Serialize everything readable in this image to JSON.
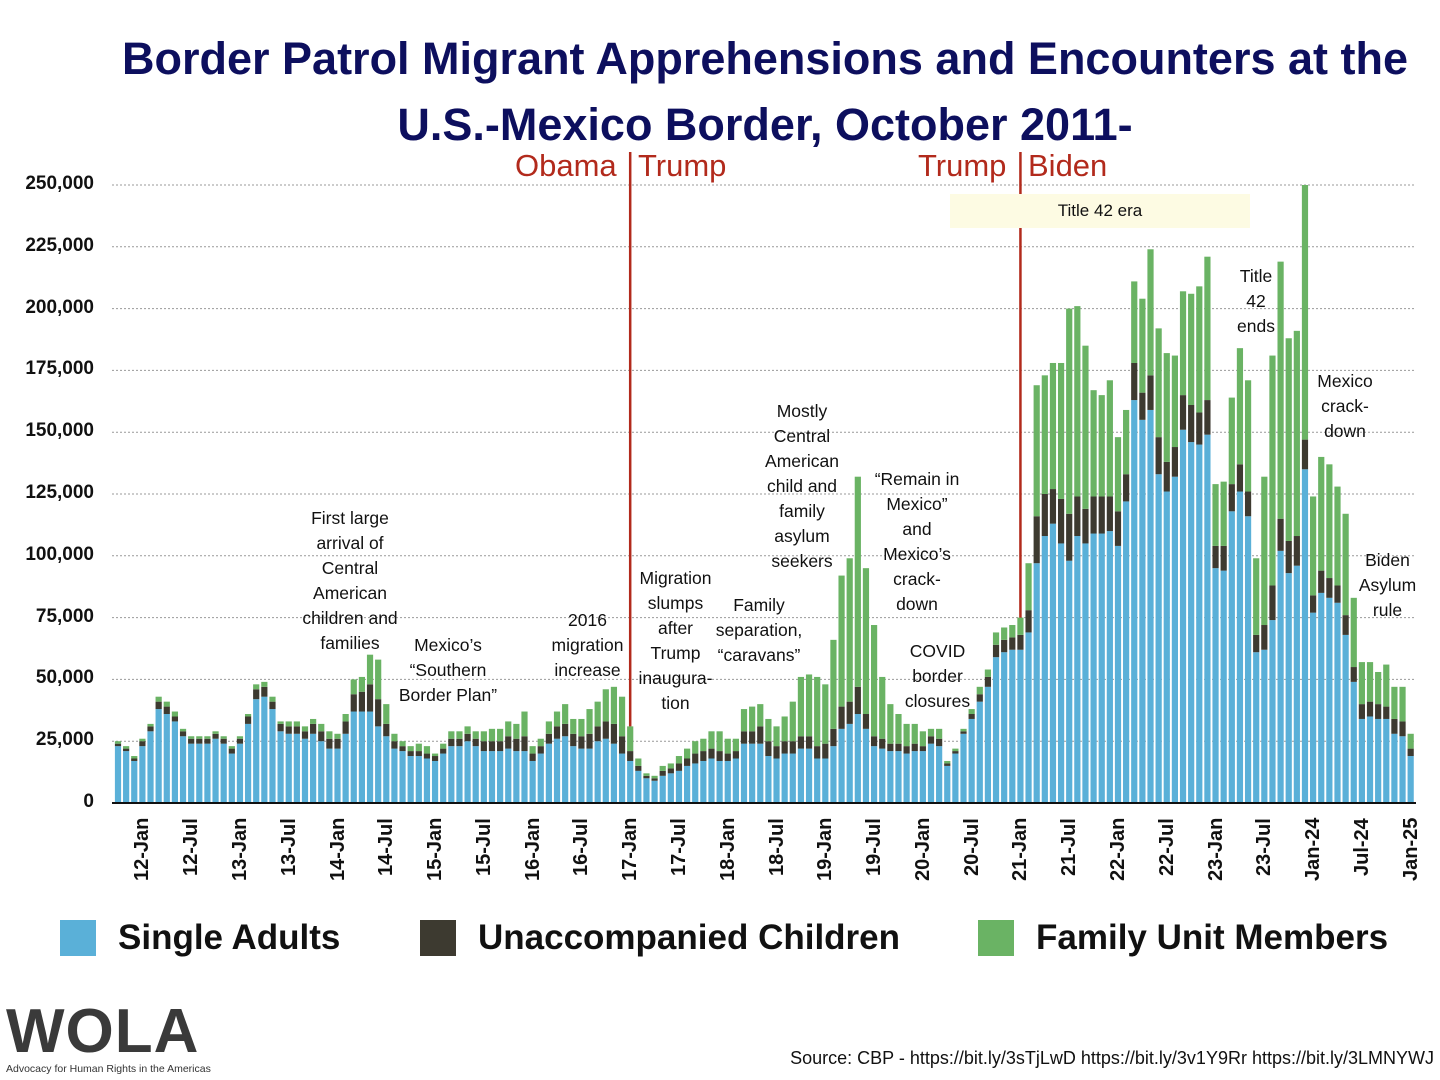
{
  "chart_data": {
    "type": "bar",
    "stacked": true,
    "title": "Border Patrol Migrant Apprehensions and Encounters at the U.S.-Mexico Border, October 2011-",
    "xlabel": "",
    "ylabel": "",
    "start_month": "2011-10",
    "ylim": [
      0,
      250000
    ],
    "yticks": [
      "0",
      "25,000",
      "50,000",
      "75,000",
      "100,000",
      "125,000",
      "150,000",
      "175,000",
      "200,000",
      "225,000",
      "250,000"
    ],
    "xticks": [
      "12-Jan",
      "12-Jul",
      "13-Jan",
      "13-Jul",
      "14-Jan",
      "14-Jul",
      "15-Jan",
      "15-Jul",
      "16-Jan",
      "16-Jul",
      "17-Jan",
      "17-Jul",
      "18-Jan",
      "18-Jul",
      "19-Jan",
      "19-Jul",
      "20-Jan",
      "20-Jul",
      "21-Jan",
      "21-Jul",
      "22-Jan",
      "22-Jul",
      "23-Jan",
      "23-Jul",
      "Jan-24",
      "Jul-24",
      "Jan-25"
    ],
    "grid": true,
    "units": "thousands",
    "series": [
      {
        "name": "Single Adults",
        "color": "#5ab0d8",
        "values": [
          23,
          21,
          17,
          23,
          29,
          38,
          36,
          33,
          27,
          24,
          24,
          24,
          26,
          24,
          20,
          24,
          32,
          42,
          43,
          38,
          29,
          28,
          28,
          26,
          28,
          25,
          22,
          22,
          28,
          37,
          37,
          37,
          31,
          27,
          22,
          21,
          19,
          19,
          18,
          17,
          20,
          23,
          23,
          25,
          23,
          21,
          21,
          21,
          22,
          21,
          21,
          17,
          20,
          24,
          26,
          27,
          23,
          22,
          22,
          25,
          26,
          24,
          20,
          17,
          13,
          10,
          9,
          11,
          12,
          13,
          15,
          16,
          17,
          18,
          17,
          17,
          18,
          24,
          24,
          24,
          19,
          18,
          20,
          20,
          22,
          22,
          18,
          18,
          23,
          30,
          32,
          36,
          30,
          23,
          22,
          21,
          21,
          20,
          21,
          21,
          24,
          23,
          15,
          20,
          28,
          34,
          41,
          47,
          59,
          61,
          62,
          62,
          69,
          97,
          108,
          113,
          105,
          98,
          108,
          105,
          109,
          109,
          110,
          104,
          122,
          163,
          155,
          159,
          133,
          126,
          132,
          151,
          146,
          145,
          149,
          95,
          94,
          118,
          126,
          116,
          61,
          62,
          74,
          102,
          93,
          96,
          135,
          77,
          85,
          83,
          81,
          68,
          49,
          34,
          35,
          34,
          34,
          28,
          27,
          19
        ]
      },
      {
        "name": "Unaccompanied Children",
        "color": "#3d3a30",
        "values": [
          1,
          1,
          1,
          2,
          2,
          3,
          3,
          2,
          2,
          2,
          2,
          2,
          2,
          2,
          2,
          2,
          3,
          4,
          4,
          3,
          3,
          3,
          3,
          3,
          4,
          4,
          4,
          4,
          5,
          7,
          8,
          11,
          11,
          5,
          3,
          2,
          2,
          2,
          2,
          2,
          2,
          3,
          3,
          3,
          3,
          4,
          4,
          4,
          5,
          5,
          6,
          3,
          3,
          4,
          5,
          5,
          5,
          5,
          6,
          6,
          7,
          8,
          7,
          4,
          2,
          1,
          1,
          2,
          2,
          3,
          3,
          4,
          4,
          4,
          4,
          3,
          3,
          5,
          5,
          7,
          6,
          5,
          5,
          5,
          5,
          5,
          5,
          6,
          7,
          9,
          9,
          11,
          6,
          4,
          4,
          3,
          3,
          3,
          3,
          2,
          3,
          3,
          1,
          1,
          1,
          2,
          3,
          4,
          5,
          5,
          5,
          6,
          9,
          19,
          17,
          14,
          18,
          19,
          16,
          14,
          15,
          15,
          14,
          14,
          11,
          15,
          11,
          14,
          15,
          12,
          12,
          14,
          15,
          13,
          14,
          9,
          10,
          11,
          11,
          10,
          7,
          10,
          14,
          13,
          13,
          12,
          12,
          7,
          9,
          8,
          7,
          8,
          6,
          6,
          6,
          6,
          5,
          6,
          6,
          3
        ]
      },
      {
        "name": "Family Unit Members",
        "color": "#6ab364",
        "values": [
          1,
          1,
          1,
          1,
          1,
          2,
          2,
          2,
          1,
          1,
          1,
          1,
          1,
          1,
          1,
          1,
          1,
          2,
          2,
          2,
          1,
          2,
          2,
          2,
          2,
          3,
          3,
          2,
          3,
          6,
          6,
          12,
          16,
          8,
          3,
          2,
          2,
          3,
          3,
          1,
          2,
          3,
          3,
          3,
          3,
          4,
          5,
          5,
          6,
          6,
          10,
          3,
          3,
          5,
          6,
          8,
          6,
          7,
          10,
          10,
          13,
          15,
          16,
          10,
          3,
          1,
          1,
          2,
          2,
          3,
          4,
          5,
          5,
          7,
          8,
          6,
          5,
          9,
          10,
          9,
          9,
          8,
          10,
          16,
          24,
          25,
          28,
          24,
          36,
          53,
          58,
          85,
          59,
          45,
          25,
          16,
          12,
          9,
          8,
          6,
          3,
          4,
          1,
          1,
          1,
          2,
          3,
          3,
          5,
          5,
          5,
          7,
          19,
          53,
          48,
          51,
          55,
          83,
          77,
          66,
          43,
          41,
          47,
          30,
          26,
          33,
          38,
          51,
          44,
          44,
          37,
          42,
          45,
          51,
          58,
          25,
          26,
          35,
          47,
          45,
          31,
          60,
          93,
          104,
          82,
          83,
          103,
          40,
          46,
          46,
          40,
          41,
          28,
          17,
          16,
          13,
          17,
          13,
          14,
          6
        ]
      }
    ],
    "annotations": {
      "obama": "Obama",
      "trump1": "Trump",
      "trump2": "Trump",
      "biden": "Biden",
      "title42_era": "Title 42 era",
      "central_american": "First large\narrival of\nCentral\nAmerican\nchildren and\nfamilies",
      "southern_border": "Mexico’s\n“Southern\nBorder Plan”",
      "m2016": "2016\nmigration\nincrease",
      "slumps": "Migration\nslumps\nafter\nTrump\ninaugura-\ntion",
      "family_sep": "Family\nseparation,\n“caravans”",
      "asylum_seekers": "Mostly\nCentral\nAmerican\nchild and\nfamily\nasylum\nseekers",
      "remain": "“Remain in\nMexico”\nand\nMexico’s\ncrack-\ndown",
      "covid": "COVID\nborder\nclosures",
      "title42_ends": "Title\n42\nends",
      "mexico_crackdown": "Mexico\ncrack-\ndown",
      "biden_rule": "Biden\nAsylum\nrule"
    }
  },
  "legend": [
    "Single Adults",
    "Unaccompanied Children",
    "Family Unit Members"
  ],
  "logo": {
    "name": "WOLA",
    "tagline": "Advocacy for Human Rights in the Americas"
  },
  "source": "Source: CBP - https://bit.ly/3sTjLwD https://bit.ly/3v1Y9Rr https://bit.ly/3LMNYWJ"
}
